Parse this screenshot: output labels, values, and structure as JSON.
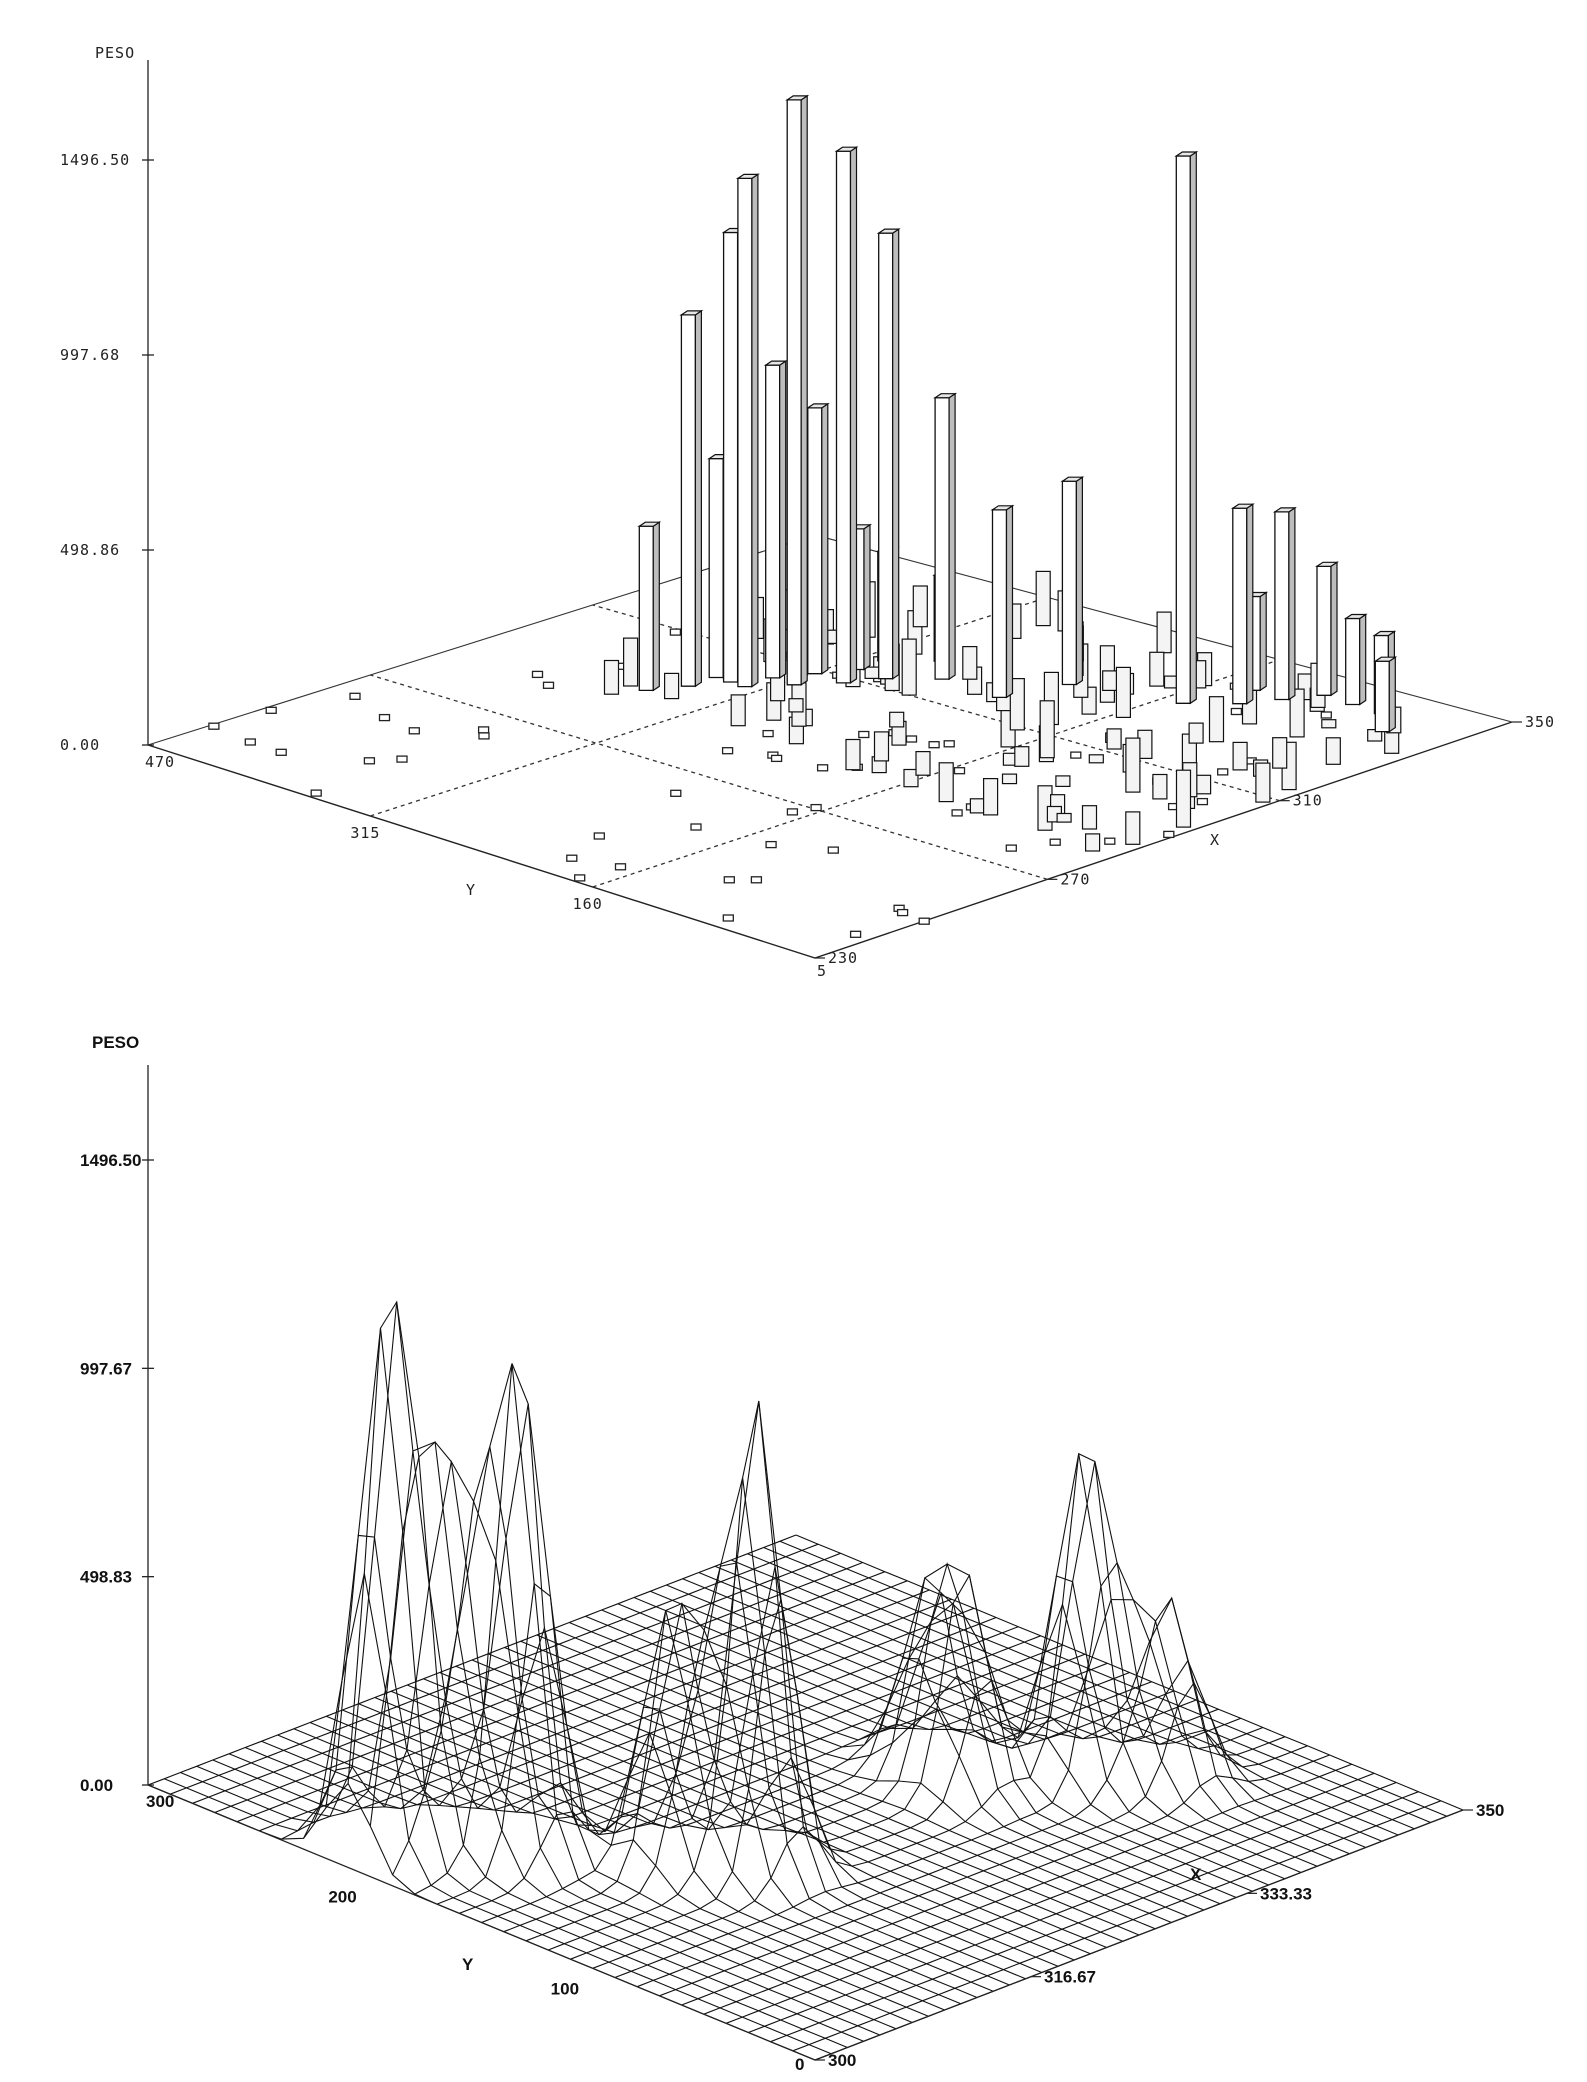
{
  "chart_data": [
    {
      "type": "bar3d",
      "z_axis": {
        "label": "PESO",
        "ticks": [
          "0.00",
          "498.86",
          "997.68",
          "1496.50"
        ],
        "range": [
          0,
          1496.5
        ]
      },
      "x_axis": {
        "label": "X",
        "ticks": [
          "230",
          "270",
          "310",
          "350"
        ],
        "range": [
          230,
          350
        ]
      },
      "y_axis": {
        "label": "Y",
        "ticks": [
          "5",
          "160",
          "315",
          "470"
        ],
        "range": [
          5,
          470
        ]
      },
      "dashed_grid": true,
      "bars": [
        {
          "x": 305,
          "y": 315,
          "z": 1496
        },
        {
          "x": 300,
          "y": 330,
          "z": 1300
        },
        {
          "x": 310,
          "y": 300,
          "z": 1360
        },
        {
          "x": 315,
          "y": 290,
          "z": 1140
        },
        {
          "x": 335,
          "y": 160,
          "z": 1400
        },
        {
          "x": 300,
          "y": 340,
          "z": 1150
        },
        {
          "x": 295,
          "y": 350,
          "z": 950
        },
        {
          "x": 305,
          "y": 330,
          "z": 800
        },
        {
          "x": 310,
          "y": 320,
          "z": 680
        },
        {
          "x": 320,
          "y": 270,
          "z": 720
        },
        {
          "x": 330,
          "y": 220,
          "z": 520
        },
        {
          "x": 320,
          "y": 230,
          "z": 480
        },
        {
          "x": 340,
          "y": 140,
          "z": 500
        },
        {
          "x": 290,
          "y": 360,
          "z": 420
        },
        {
          "x": 300,
          "y": 350,
          "z": 560
        },
        {
          "x": 310,
          "y": 330,
          "z": 620
        },
        {
          "x": 315,
          "y": 310,
          "z": 360
        },
        {
          "x": 320,
          "y": 310,
          "z": 280
        },
        {
          "x": 325,
          "y": 290,
          "z": 220
        },
        {
          "x": 345,
          "y": 130,
          "z": 480
        },
        {
          "x": 350,
          "y": 120,
          "z": 330
        },
        {
          "x": 345,
          "y": 150,
          "z": 240
        },
        {
          "x": 350,
          "y": 100,
          "z": 220
        },
        {
          "x": 350,
          "y": 80,
          "z": 200
        },
        {
          "x": 345,
          "y": 60,
          "z": 180
        }
      ]
    },
    {
      "type": "surface3d",
      "z_axis": {
        "label": "PESO",
        "ticks": [
          "0.00",
          "498.83",
          "997.67",
          "1496.50"
        ],
        "range": [
          0,
          1496.5
        ]
      },
      "x_axis": {
        "label": "X",
        "ticks": [
          "300",
          "316.67",
          "333.33",
          "350"
        ],
        "range": [
          300,
          350
        ]
      },
      "y_axis": {
        "label": "Y",
        "ticks": [
          "0",
          "100",
          "200",
          "300"
        ],
        "range": [
          0,
          300
        ]
      },
      "peaks": [
        {
          "x": 303,
          "y": 210,
          "z": 1290
        },
        {
          "x": 308,
          "y": 180,
          "z": 1180
        },
        {
          "x": 316,
          "y": 120,
          "z": 1125
        },
        {
          "x": 306,
          "y": 200,
          "z": 760
        },
        {
          "x": 313,
          "y": 140,
          "z": 640
        },
        {
          "x": 338,
          "y": 100,
          "z": 820
        },
        {
          "x": 332,
          "y": 120,
          "z": 480
        },
        {
          "x": 341,
          "y": 80,
          "z": 430
        },
        {
          "x": 333,
          "y": 140,
          "z": 420
        }
      ]
    }
  ]
}
